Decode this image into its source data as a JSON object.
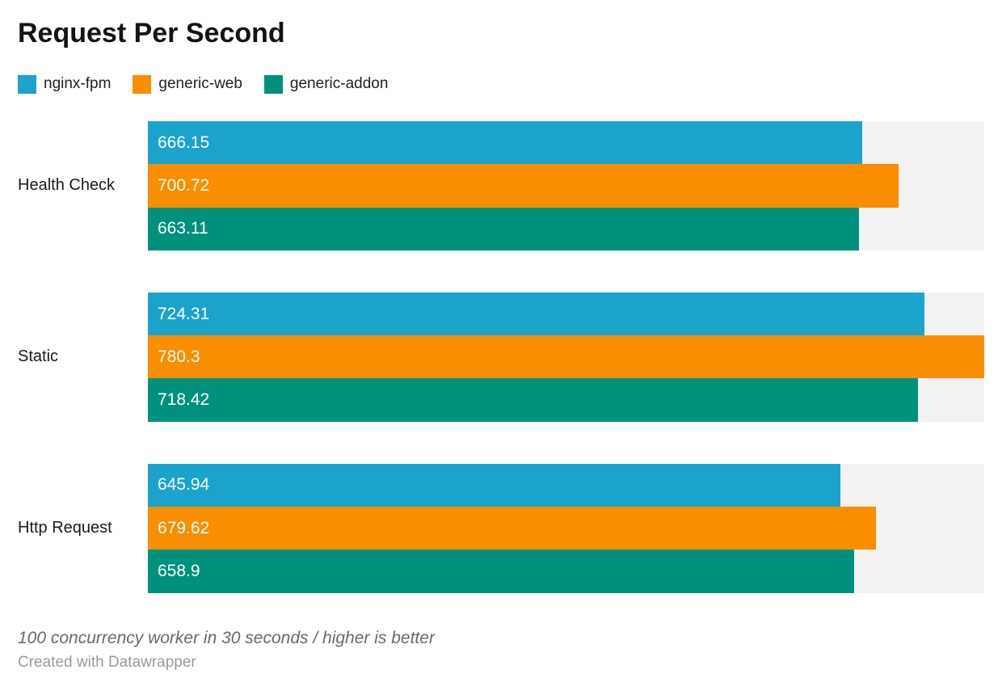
{
  "header": {
    "title": "Request Per Second"
  },
  "footer": {
    "note": "100 concurrency worker in 30 seconds / higher is better",
    "credit": "Created with Datawrapper"
  },
  "colors": {
    "nginx_fpm": "#1BA3CB",
    "generic_web": "#F98E00",
    "generic_addon": "#00917C",
    "bar_track": "#F2F2F2",
    "value_text": "#FFFFFF"
  },
  "chart_data": {
    "type": "bar",
    "orientation": "horizontal",
    "title": "Request Per Second",
    "xlabel": "",
    "ylabel": "",
    "xlim": [
      0,
      780.3
    ],
    "grid": false,
    "legend_position": "top",
    "track_color": "#F2F2F2",
    "categories": [
      "Health Check",
      "Static",
      "Http Request"
    ],
    "series": [
      {
        "name": "nginx-fpm",
        "color": "#1BA3CB",
        "values": [
          666.15,
          724.31,
          645.94
        ]
      },
      {
        "name": "generic-web",
        "color": "#F98E00",
        "values": [
          700.72,
          780.3,
          679.62
        ]
      },
      {
        "name": "generic-addon",
        "color": "#00917C",
        "values": [
          663.11,
          718.42,
          658.9
        ]
      }
    ],
    "value_labels": [
      [
        "666.15",
        "700.72",
        "663.11"
      ],
      [
        "724.31",
        "780.3",
        "718.42"
      ],
      [
        "645.94",
        "679.62",
        "658.9"
      ]
    ]
  }
}
